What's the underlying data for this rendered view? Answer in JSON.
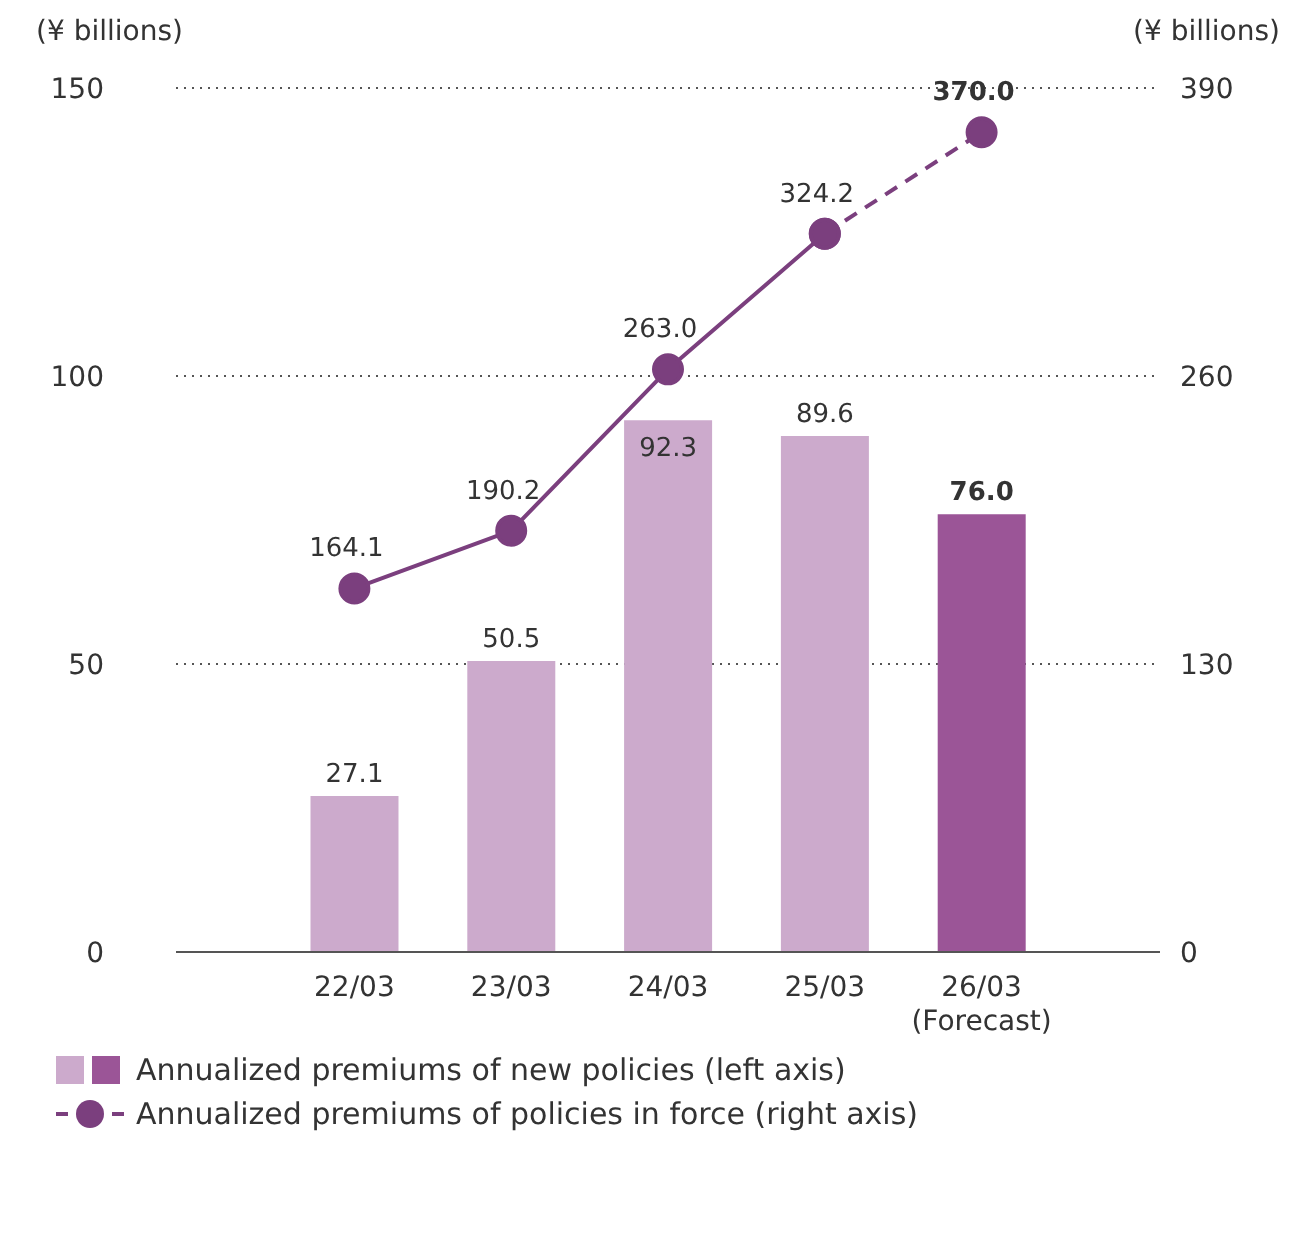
{
  "chart_data": {
    "type": "bar",
    "ylabel": "(¥ billions)",
    "y2label": "(¥ billions)",
    "categories": [
      "22/03",
      "23/03",
      "24/03",
      "25/03",
      "26/03\n(Forecast)"
    ],
    "series": [
      {
        "name": "Annualized premiums of new policies (left axis)",
        "colors": [
          "#ccaacc",
          "#ccaacc",
          "#ccaacc",
          "#ccaacc",
          "#9b5597"
        ],
        "values": [
          27.1,
          50.5,
          92.3,
          89.6,
          76.0
        ],
        "value_labels": [
          "27.1",
          "50.5",
          "92.3",
          "89.6",
          "76.0"
        ]
      },
      {
        "type": "line",
        "axis": "y2",
        "name": "Annualized premiums of policies in force (right axis)",
        "color": "#7b3f7e",
        "line_style": "solid",
        "values": [
          164.1,
          190.2,
          263.0,
          324.2,
          null
        ],
        "value_labels": [
          "164.1",
          "190.2",
          "263.0",
          "324.2",
          null
        ]
      },
      {
        "type": "line",
        "axis": "y2",
        "color": "#7b3f7e",
        "line_style": "dashed",
        "values": [
          null,
          null,
          null,
          324.2,
          370.0
        ],
        "value_labels": [
          null,
          null,
          null,
          null,
          "370.0"
        ]
      }
    ],
    "ylim": [
      0,
      150
    ],
    "yticks": [
      0,
      50,
      100,
      150
    ],
    "y2lim": [
      0,
      390
    ],
    "y2ticks": [
      0,
      130,
      260,
      390
    ],
    "grid": "y",
    "legend": "bottom left",
    "marker": "circle"
  }
}
